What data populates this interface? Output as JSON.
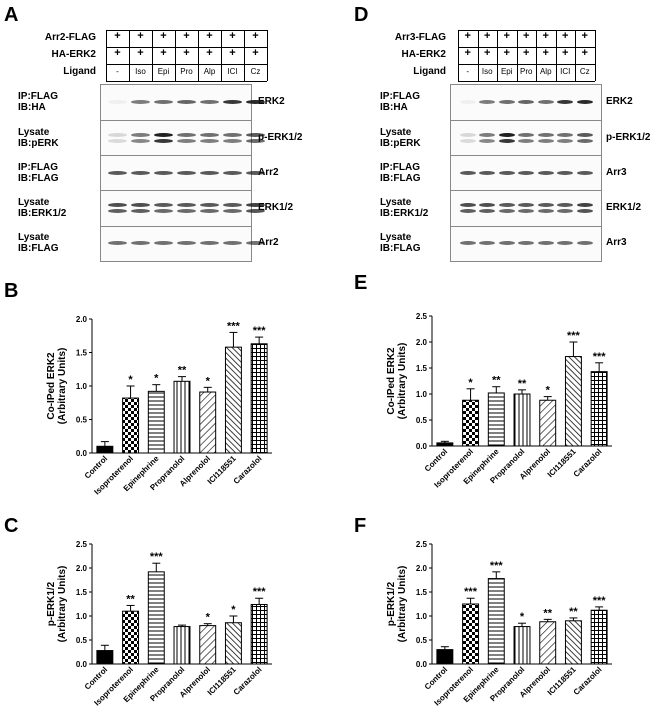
{
  "panels": {
    "A": "A",
    "B": "B",
    "C": "C",
    "D": "D",
    "E": "E",
    "F": "F"
  },
  "blot_left": {
    "header_rows": [
      {
        "label": "Arr2-FLAG",
        "cells": [
          "+",
          "+",
          "+",
          "+",
          "+",
          "+",
          "+"
        ]
      },
      {
        "label": "HA-ERK2",
        "cells": [
          "+",
          "+",
          "+",
          "+",
          "+",
          "+",
          "+"
        ]
      },
      {
        "label": "Ligand",
        "cells": [
          "-",
          "Iso",
          "Epi",
          "Pro",
          "Alp",
          "ICI",
          "Cz"
        ]
      }
    ],
    "rows": [
      {
        "left": "IP:FLAG\nIB:HA",
        "right": "ERK2"
      },
      {
        "left": "Lysate\nIB:pERK",
        "right": "p-ERK1/2"
      },
      {
        "left": "IP:FLAG\nIB:FLAG",
        "right": "Arr2"
      },
      {
        "left": "Lysate\nIB:ERK1/2",
        "right": "ERK1/2"
      },
      {
        "left": "Lysate\nIB:FLAG",
        "right": "Arr2"
      }
    ]
  },
  "blot_right": {
    "header_rows": [
      {
        "label": "Arr3-FLAG",
        "cells": [
          "+",
          "+",
          "+",
          "+",
          "+",
          "+",
          "+"
        ]
      },
      {
        "label": "HA-ERK2",
        "cells": [
          "+",
          "+",
          "+",
          "+",
          "+",
          "+",
          "+"
        ]
      },
      {
        "label": "Ligand",
        "cells": [
          "-",
          "Iso",
          "Epi",
          "Pro",
          "Alp",
          "ICI",
          "Cz"
        ]
      }
    ],
    "rows": [
      {
        "left": "IP:FLAG\nIB:HA",
        "right": "ERK2"
      },
      {
        "left": "Lysate\nIB:pERK",
        "right": "p-ERK1/2"
      },
      {
        "left": "IP:FLAG\nIB:FLAG",
        "right": "Arr3"
      },
      {
        "left": "Lysate\nIB:ERK1/2",
        "right": "ERK1/2"
      },
      {
        "left": "Lysate\nIB:FLAG",
        "right": "Arr3"
      }
    ]
  },
  "chart_data": [
    {
      "panel": "B",
      "type": "bar",
      "categories": [
        "Control",
        "Isoproterenol",
        "Epinephrine",
        "Propranolol",
        "Alprenolol",
        "ICI118551",
        "Carazolol"
      ],
      "values": [
        0.1,
        0.82,
        0.92,
        1.07,
        0.91,
        1.58,
        1.63
      ],
      "errors": [
        0.07,
        0.18,
        0.1,
        0.07,
        0.07,
        0.22,
        0.1
      ],
      "significance": [
        "",
        "*",
        "*",
        "**",
        "*",
        "***",
        "***"
      ],
      "ylabel": "Co-IPed ERK2\n(Arbitrary Units)",
      "ylim": [
        0,
        2.0
      ],
      "yticks": [
        "0.0",
        "0.5",
        "1.0",
        "1.5",
        "2.0"
      ]
    },
    {
      "panel": "C",
      "type": "bar",
      "categories": [
        "Control",
        "Isoproterenol",
        "Epinephrine",
        "Propranolol",
        "Alprenolol",
        "ICI118551",
        "Carazolol"
      ],
      "values": [
        0.28,
        1.1,
        1.92,
        0.78,
        0.8,
        0.86,
        1.24
      ],
      "errors": [
        0.11,
        0.12,
        0.18,
        0.03,
        0.04,
        0.14,
        0.13
      ],
      "significance": [
        "",
        "**",
        "***",
        "",
        "*",
        "*",
        "***"
      ],
      "ylabel": "p-ERK1/2\n(Arbitrary Units)",
      "ylim": [
        0,
        2.5
      ],
      "yticks": [
        "0.0",
        "0.5",
        "1.0",
        "1.5",
        "2.0",
        "2.5"
      ]
    },
    {
      "panel": "E",
      "type": "bar",
      "categories": [
        "Control",
        "Isoproterenol",
        "Epinephrine",
        "Propranolol",
        "Alprenolol",
        "ICI118551",
        "Carazolol"
      ],
      "values": [
        0.06,
        0.88,
        1.02,
        1.0,
        0.88,
        1.72,
        1.43
      ],
      "errors": [
        0.03,
        0.22,
        0.12,
        0.08,
        0.07,
        0.28,
        0.17
      ],
      "significance": [
        "",
        "*",
        "**",
        "**",
        "*",
        "***",
        "***"
      ],
      "ylabel": "Co-IPed ERK2\n(Arbitrary Units)",
      "ylim": [
        0,
        2.5
      ],
      "yticks": [
        "0.0",
        "0.5",
        "1.0",
        "1.5",
        "2.0",
        "2.5"
      ]
    },
    {
      "panel": "F",
      "type": "bar",
      "categories": [
        "Control",
        "Isoproterenol",
        "Epinephrine",
        "Propranolol",
        "Alprenolol",
        "ICI118551",
        "Carazolol"
      ],
      "values": [
        0.3,
        1.25,
        1.78,
        0.78,
        0.88,
        0.9,
        1.12
      ],
      "errors": [
        0.06,
        0.12,
        0.14,
        0.07,
        0.05,
        0.06,
        0.07
      ],
      "significance": [
        "",
        "***",
        "***",
        "*",
        "**",
        "**",
        "***"
      ],
      "ylabel": "p-ERK1/2\n(Arbitrary Units)",
      "ylim": [
        0,
        2.5
      ],
      "yticks": [
        "0.0",
        "0.5",
        "1.0",
        "1.5",
        "2.0",
        "2.5"
      ]
    }
  ]
}
